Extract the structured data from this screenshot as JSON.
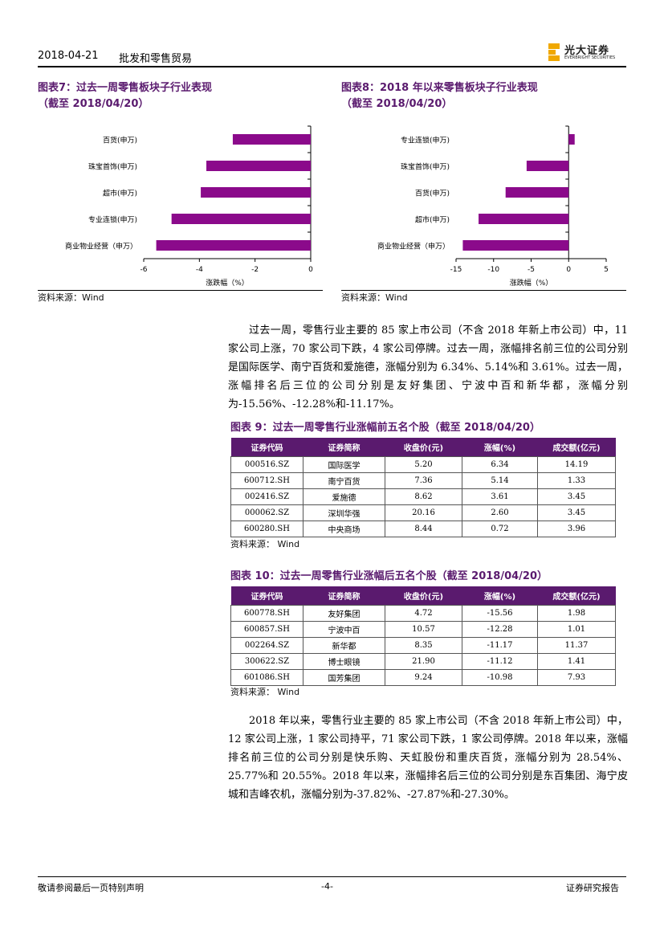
{
  "header": {
    "date": "2018-04-21",
    "title": "批发和零售贸易",
    "logo_cn": "光大证券",
    "logo_en": "EVERBRIGHT SECURITIES"
  },
  "fig7": {
    "title_line1": "图表7：过去一周零售板块子行业表现",
    "title_line2": "（截至 2018/04/20）",
    "source": "资料来源：Wind"
  },
  "fig8": {
    "title_line1": "图表8：2018 年以来零售板块子行业表现",
    "title_line2": "（截至 2018/04/20）",
    "source": "资料来源：Wind"
  },
  "chart_data": [
    {
      "type": "bar",
      "orientation": "horizontal",
      "categories": [
        "百货(申万)",
        "珠宝首饰(申万)",
        "超市(申万)",
        "专业连锁(申万)",
        "商业物业经营（申万）"
      ],
      "values": [
        -2.8,
        -3.75,
        -3.95,
        -5.0,
        -5.55
      ],
      "xlabel": "涨跌幅（%）",
      "xlim": [
        -6,
        0
      ],
      "xticks": [
        "-6",
        "-4",
        "-2",
        "0"
      ],
      "color": "#8b0a8b"
    },
    {
      "type": "bar",
      "orientation": "horizontal",
      "categories": [
        "专业连锁(申万)",
        "珠宝首饰(申万)",
        "百货(申万)",
        "超市(申万)",
        "商业物业经营（申万）"
      ],
      "values": [
        0.8,
        -5.6,
        -8.4,
        -12.0,
        -14.1
      ],
      "xlabel": "涨跌幅（%）",
      "xlim": [
        -15,
        5
      ],
      "xticks": [
        "-15",
        "-10",
        "-5",
        "0",
        "5"
      ],
      "color": "#8b0a8b"
    }
  ],
  "para1": "过去一周，零售行业主要的 85 家上市公司（不含 2018 年新上市公司）中，11 家公司上涨，70 家公司下跌，4 家公司停牌。过去一周，涨幅排名前三位的公司分别是国际医学、南宁百货和爱施德，涨幅分别为 6.34%、5.14%和 3.61%。过去一周，涨幅排名后三位的公司分别是友好集团、宁波中百和新华都，涨幅分别为-15.56%、-12.28%和-11.17%。",
  "table9": {
    "title": "图表 9：过去一周零售行业涨幅前五名个股（截至 2018/04/20）",
    "headers": [
      "证券代码",
      "证券简称",
      "收盘价(元)",
      "涨幅(%)",
      "成交额(亿元)"
    ],
    "rows": [
      [
        "000516.SZ",
        "国际医学",
        "5.20",
        "6.34",
        "14.19"
      ],
      [
        "600712.SH",
        "南宁百货",
        "7.36",
        "5.14",
        "1.33"
      ],
      [
        "002416.SZ",
        "爱施德",
        "8.62",
        "3.61",
        "3.45"
      ],
      [
        "000062.SZ",
        "深圳华强",
        "20.16",
        "2.60",
        "3.45"
      ],
      [
        "600280.SH",
        "中央商场",
        "8.44",
        "0.72",
        "3.96"
      ]
    ],
    "source": "资料来源：  Wind"
  },
  "table10": {
    "title": "图表 10：过去一周零售行业涨幅后五名个股（截至 2018/04/20）",
    "headers": [
      "证券代码",
      "证券简称",
      "收盘价(元)",
      "涨幅(%)",
      "成交额(亿元)"
    ],
    "rows": [
      [
        "600778.SH",
        "友好集团",
        "4.72",
        "-15.56",
        "1.98"
      ],
      [
        "600857.SH",
        "宁波中百",
        "10.57",
        "-12.28",
        "1.01"
      ],
      [
        "002264.SZ",
        "新华都",
        "8.35",
        "-11.17",
        "11.37"
      ],
      [
        "300622.SZ",
        "博士眼镜",
        "21.90",
        "-11.12",
        "1.41"
      ],
      [
        "601086.SH",
        "国芳集团",
        "9.24",
        "-10.98",
        "7.93"
      ]
    ],
    "source": "资料来源：  Wind"
  },
  "para2": "2018 年以来，零售行业主要的 85 家上市公司（不含 2018 年新上市公司）中，12 家公司上涨，1 家公司持平，71 家公司下跌，1 家公司停牌。2018 年以来，涨幅排名前三位的公司分别是快乐购、天虹股份和重庆百货，涨幅分别为 28.54%、25.77%和 20.55%。2018 年以来，涨幅排名后三位的公司分别是东百集团、海宁皮城和吉峰农机，涨幅分别为-37.82%、-27.87%和-27.30%。",
  "footer": {
    "left": "敬请参阅最后一页特别声明",
    "center": "-4-",
    "right": "证券研究报告"
  }
}
